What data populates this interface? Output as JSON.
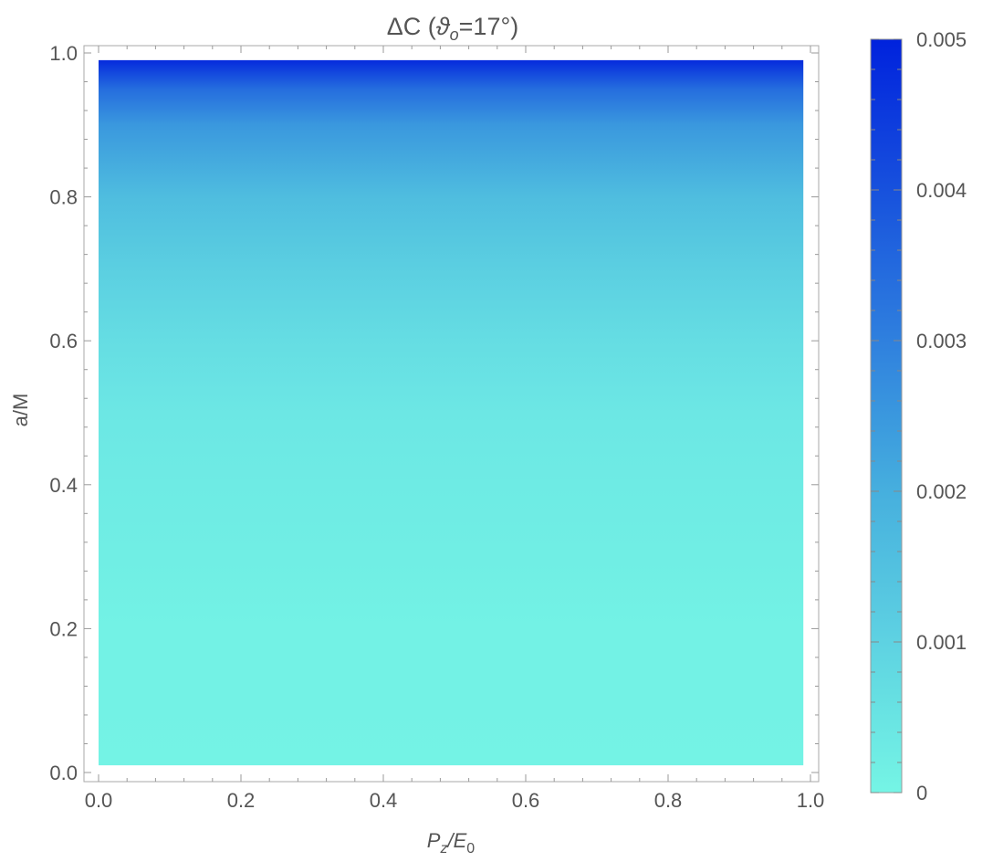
{
  "chart_data": {
    "type": "heatmap",
    "title": "ΔC  (ϑo=17°)",
    "title_parts": {
      "main": "ΔC  (",
      "symbol": "ϑ",
      "sub": "o",
      "tail": "=17°)"
    },
    "xlabel": "Pz/E0",
    "xlabel_parts": {
      "p": "P",
      "p_sub": "z",
      "slash": "/E",
      "e_sub": "0"
    },
    "ylabel": "a/M",
    "xlim": [
      0.0,
      1.0
    ],
    "ylim": [
      0.0,
      1.0
    ],
    "data_extent": {
      "x": [
        0.0,
        0.99
      ],
      "y": [
        0.01,
        0.99
      ]
    },
    "x_ticks": [
      "0.0",
      "0.2",
      "0.4",
      "0.6",
      "0.8",
      "1.0"
    ],
    "y_ticks": [
      "0.0",
      "0.2",
      "0.4",
      "0.6",
      "0.8",
      "1.0"
    ],
    "colorbar": {
      "range": [
        0,
        0.005
      ],
      "ticks": [
        "0",
        "0.001",
        "0.002",
        "0.003",
        "0.004",
        "0.005"
      ],
      "low_color": "#75F5E5",
      "high_color": "#0022DD"
    },
    "value_profile_vs_a": [
      {
        "a": 0.01,
        "dC": 5e-05
      },
      {
        "a": 0.1,
        "dC": 0.0001
      },
      {
        "a": 0.2,
        "dC": 0.0001
      },
      {
        "a": 0.3,
        "dC": 0.0002
      },
      {
        "a": 0.4,
        "dC": 0.0003
      },
      {
        "a": 0.5,
        "dC": 0.0004
      },
      {
        "a": 0.6,
        "dC": 0.0007
      },
      {
        "a": 0.7,
        "dC": 0.0011
      },
      {
        "a": 0.8,
        "dC": 0.0016
      },
      {
        "a": 0.9,
        "dC": 0.0025
      },
      {
        "a": 0.95,
        "dC": 0.0034
      },
      {
        "a": 0.99,
        "dC": 0.0048
      }
    ],
    "grid": false
  }
}
